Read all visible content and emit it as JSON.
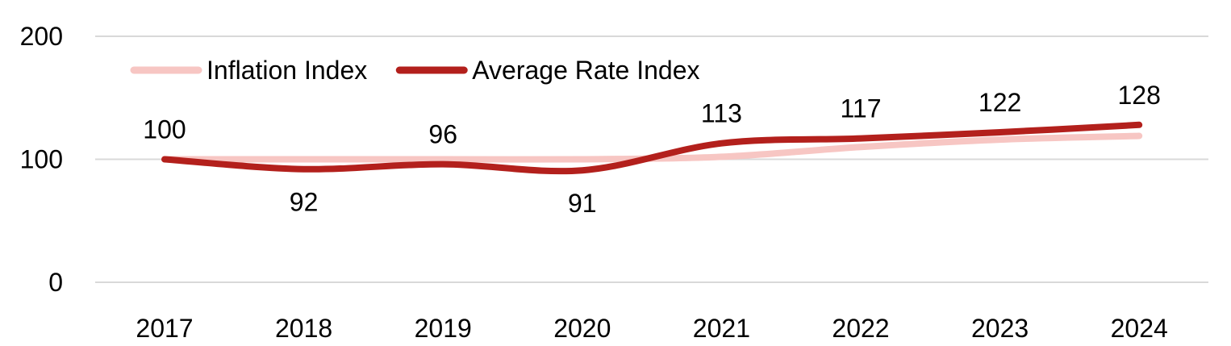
{
  "chart_data": {
    "type": "line",
    "categories": [
      "2017",
      "2018",
      "2019",
      "2020",
      "2021",
      "2022",
      "2023",
      "2024"
    ],
    "series": [
      {
        "name": "Inflation Index",
        "values": [
          100,
          100,
          100,
          100,
          102,
          110,
          116,
          119
        ],
        "color": "#f7c6c3",
        "labels": false
      },
      {
        "name": "Average Rate Index",
        "values": [
          100,
          92,
          96,
          91,
          113,
          117,
          122,
          128
        ],
        "color": "#b3201c",
        "labels": true
      }
    ],
    "ylim": [
      0,
      200
    ],
    "yticks": [
      "0",
      "100",
      "200"
    ],
    "grid": true,
    "legend": "top-left"
  }
}
